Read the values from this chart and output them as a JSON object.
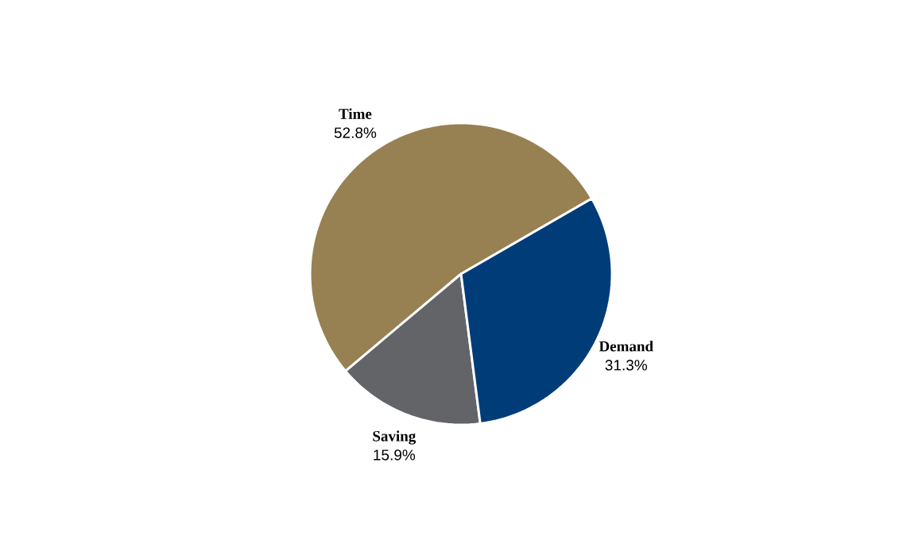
{
  "chart_data": {
    "type": "pie",
    "categories": [
      "Time",
      "Saving",
      "Demand"
    ],
    "values": [
      52.8,
      15.9,
      31.3
    ],
    "colors": [
      "#978153",
      "#636468",
      "#003d78"
    ],
    "value_labels": [
      "52.8%",
      "15.9%",
      "31.3%"
    ]
  }
}
